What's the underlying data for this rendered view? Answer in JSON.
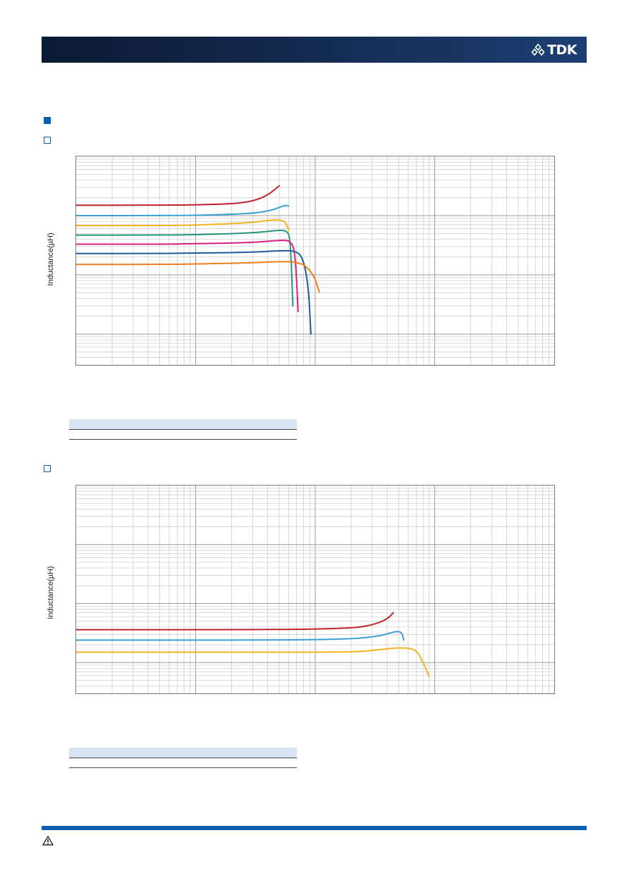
{
  "header": {
    "logo_text": "TDK",
    "logo_icon": "tdk-diamond-logo-icon",
    "colors": {
      "bar": "#13294d",
      "accent": "#0a5fb0"
    }
  },
  "footer": {
    "warning_icon": "warning-triangle-icon",
    "bar_color": "#0b5db0"
  },
  "chart_data": [
    {
      "type": "line",
      "ylabel": "Inductance(µH)",
      "xlabel": "",
      "x_scale": "log",
      "y_scale": "log",
      "xlim": [
        1,
        10000
      ],
      "ylim": [
        0.3,
        1000
      ],
      "grid": true,
      "series": [
        {
          "color": "#c0202a",
          "x": [
            1,
            5,
            10,
            20,
            30,
            40,
            50
          ],
          "y": [
            150,
            150,
            152,
            158,
            175,
            220,
            320
          ]
        },
        {
          "color": "#3a9fd4",
          "x": [
            1,
            5,
            10,
            30,
            45,
            55,
            60
          ],
          "y": [
            100,
            100,
            101,
            108,
            125,
            150,
            145
          ]
        },
        {
          "color": "#f2b31e",
          "x": [
            1,
            5,
            10,
            30,
            45,
            55,
            58,
            60
          ],
          "y": [
            68,
            68,
            69,
            76,
            86,
            82,
            70,
            56
          ]
        },
        {
          "color": "#22967b",
          "x": [
            1,
            5,
            10,
            30,
            50,
            57,
            62,
            65
          ],
          "y": [
            47,
            47,
            47.5,
            51,
            57,
            56,
            45,
            3.0
          ]
        },
        {
          "color": "#d61f83",
          "x": [
            1,
            5,
            10,
            30,
            50,
            62,
            68,
            72
          ],
          "y": [
            33,
            33,
            33.5,
            35,
            38.5,
            38,
            25,
            2.4
          ]
        },
        {
          "color": "#1d5a99",
          "x": [
            1,
            5,
            10,
            30,
            50,
            70,
            80,
            88,
            92
          ],
          "y": [
            23,
            23,
            23.3,
            24,
            25.6,
            25.5,
            18,
            6,
            1.0
          ]
        },
        {
          "color": "#ef7d1a",
          "x": [
            1,
            5,
            10,
            30,
            50,
            70,
            85,
            100,
            108
          ],
          "y": [
            15,
            15,
            15.2,
            16,
            16.8,
            16.5,
            14,
            8.8,
            5.1
          ]
        }
      ]
    },
    {
      "type": "line",
      "ylabel": "Inductance(µH)",
      "xlabel": "",
      "x_scale": "log",
      "y_scale": "log",
      "xlim": [
        1,
        10000
      ],
      "ylim": [
        0.3,
        1000
      ],
      "grid": true,
      "series": [
        {
          "color": "#c0202a",
          "x": [
            1,
            50,
            200,
            300,
            400,
            450
          ],
          "y": [
            3.6,
            3.6,
            3.8,
            4.3,
            5.4,
            7.0
          ]
        },
        {
          "color": "#3a9fd4",
          "x": [
            1,
            50,
            200,
            350,
            470,
            530,
            550
          ],
          "y": [
            2.4,
            2.4,
            2.5,
            2.8,
            3.4,
            3.3,
            2.4
          ]
        },
        {
          "color": "#f2b31e",
          "x": [
            1,
            50,
            200,
            300,
            500,
            700,
            800,
            900
          ],
          "y": [
            1.5,
            1.5,
            1.5,
            1.6,
            1.8,
            1.7,
            1.0,
            0.58
          ]
        }
      ]
    }
  ]
}
